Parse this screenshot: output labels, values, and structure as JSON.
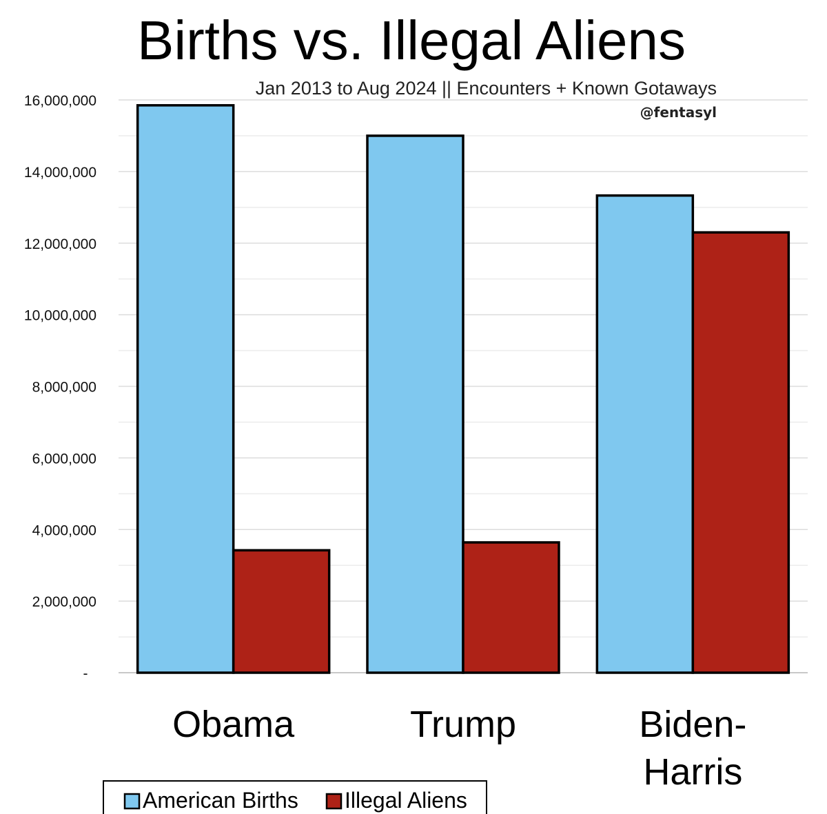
{
  "chart_data": {
    "type": "bar",
    "title": "Births vs. Illegal Aliens",
    "subtitle": "Jan 2013 to Aug 2024 || Encounters + Known Gotaways",
    "credit": "@fentasyl",
    "categories": [
      "Obama",
      "Trump",
      "Biden-Harris"
    ],
    "category_lines": [
      [
        "Obama"
      ],
      [
        "Trump"
      ],
      [
        "Biden-",
        "Harris"
      ]
    ],
    "series": [
      {
        "name": "American Births",
        "color": "#7FC8EF",
        "values": [
          15850000,
          15000000,
          13330000
        ]
      },
      {
        "name": "Illegal Aliens",
        "color": "#AE2217",
        "values": [
          3420000,
          3640000,
          12300000
        ]
      }
    ],
    "y_ticks": [
      {
        "value": 0,
        "label": "-"
      },
      {
        "value": 2000000,
        "label": "2,000,000"
      },
      {
        "value": 4000000,
        "label": "4,000,000"
      },
      {
        "value": 6000000,
        "label": "6,000,000"
      },
      {
        "value": 8000000,
        "label": "8,000,000"
      },
      {
        "value": 10000000,
        "label": "10,000,000"
      },
      {
        "value": 12000000,
        "label": "12,000,000"
      },
      {
        "value": 14000000,
        "label": "14,000,000"
      },
      {
        "value": 16000000,
        "label": "16,000,000"
      }
    ],
    "ylim": [
      0,
      16000000
    ],
    "grid": true,
    "minor_grid": true,
    "legend_position": "bottom-left",
    "xlabel": "",
    "ylabel": ""
  }
}
